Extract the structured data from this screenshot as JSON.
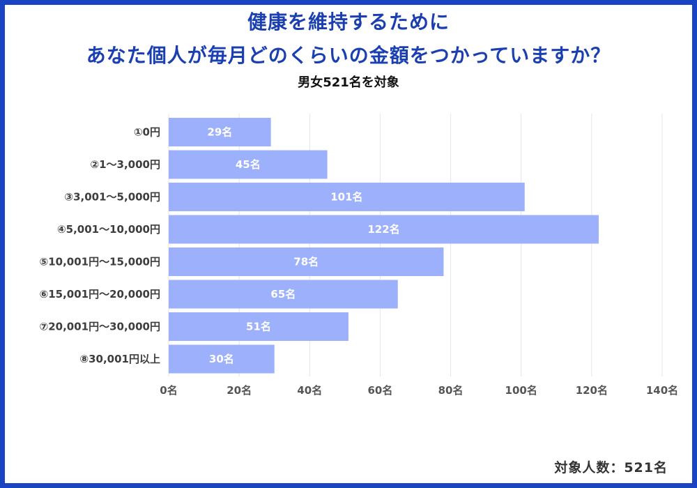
{
  "title_line1": "健康を維持するために",
  "title_line2": "あなた個人が毎月どのくらいの金額をつかっていますか？",
  "subtitle": "男女521名を対象",
  "footer": "対象人数：521名",
  "colors": {
    "bar": "#9db0fb",
    "title": "#1a3fb0",
    "frame": "#1a45c2",
    "grid": "#e4e4e4"
  },
  "chart_data": {
    "type": "bar",
    "orientation": "horizontal",
    "title": "健康を維持するために あなた個人が毎月どのくらいの金額をつかっていますか？",
    "subtitle": "男女521名を対象",
    "categories": [
      "①0円",
      "②1〜3,000円",
      "③3,001〜5,000円",
      "④5,001〜10,000円",
      "⑤10,001円〜15,000円",
      "⑥15,001円〜20,000円",
      "⑦20,001円〜30,000円",
      "⑧30,001円以上"
    ],
    "values": [
      29,
      45,
      101,
      122,
      78,
      65,
      51,
      30
    ],
    "value_labels": [
      "29名",
      "45名",
      "101名",
      "122名",
      "78名",
      "65名",
      "51名",
      "30名"
    ],
    "x_ticks": [
      0,
      20,
      40,
      60,
      80,
      100,
      120,
      140
    ],
    "x_tick_labels": [
      "0名",
      "20名",
      "40名",
      "60名",
      "80名",
      "100名",
      "120名",
      "140名"
    ],
    "xlim": [
      0,
      140
    ],
    "xlabel": "",
    "ylabel": "",
    "grid": true,
    "legend": "none"
  }
}
